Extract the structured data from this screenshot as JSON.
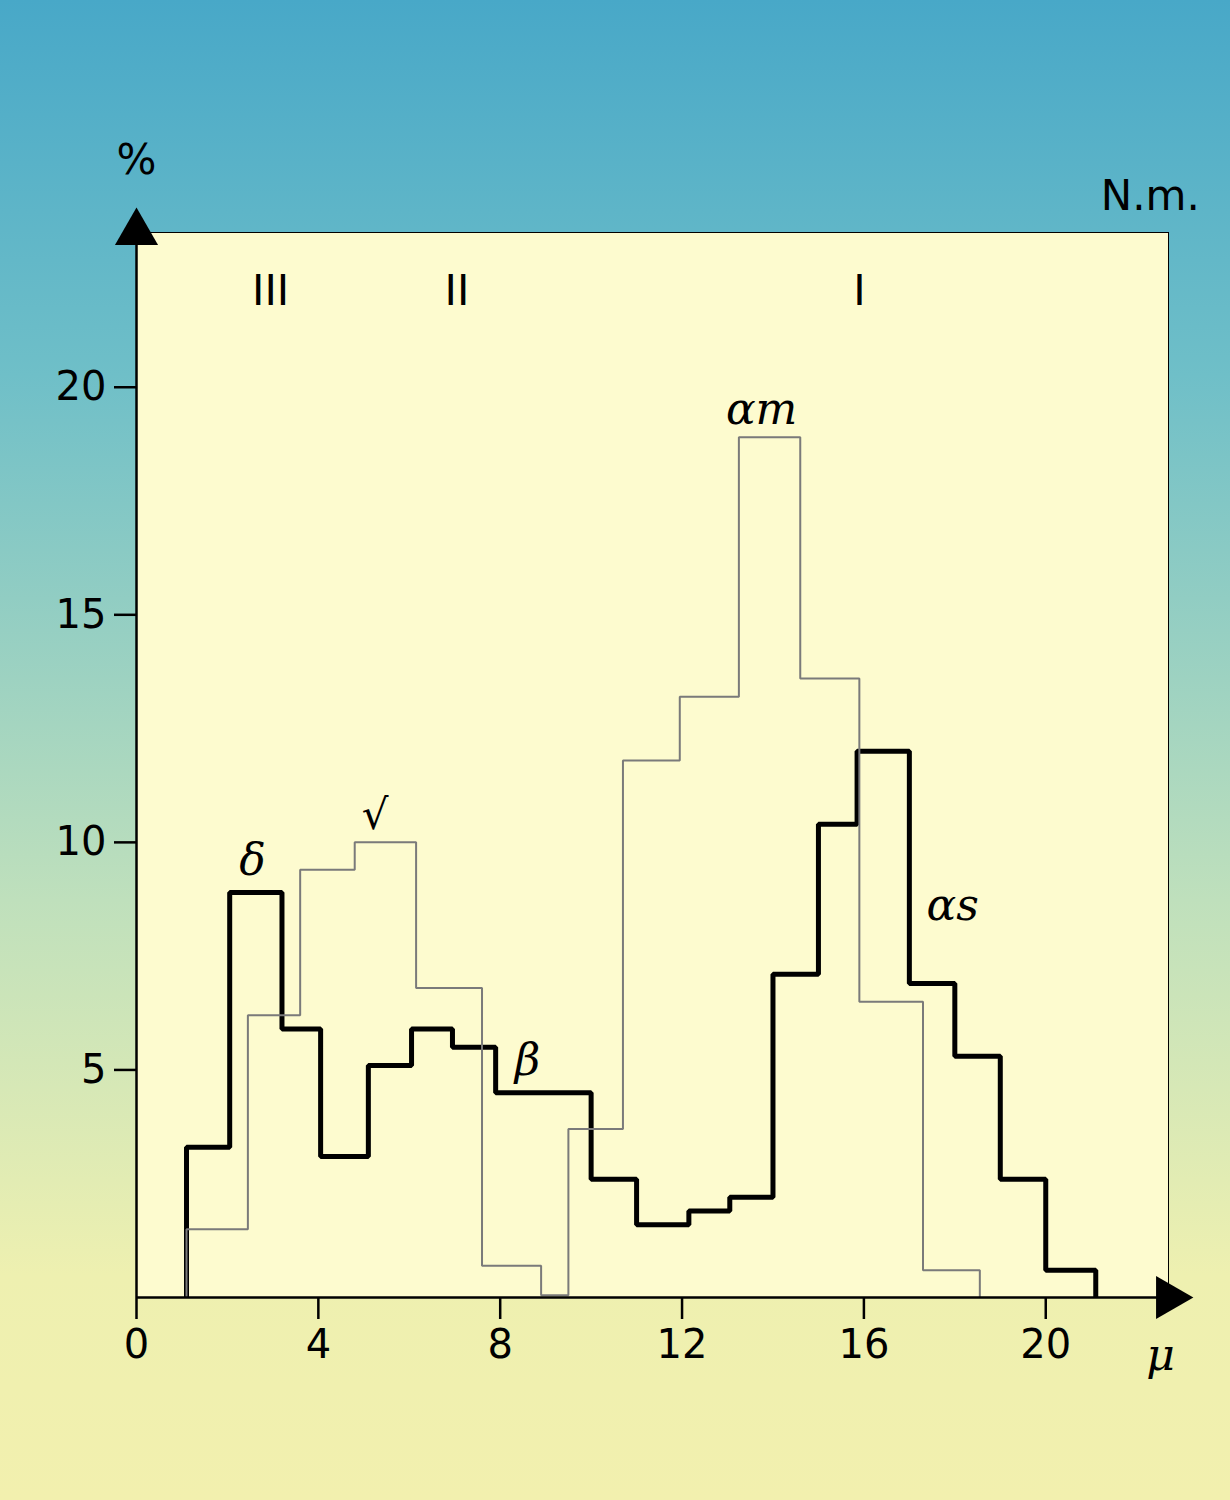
{
  "chart_data": {
    "type": "step_histogram",
    "x_label": "μ",
    "y_label": "%",
    "xlim": [
      0,
      22.7
    ],
    "ylim": [
      0,
      23.4
    ],
    "xticks": [
      0,
      4,
      8,
      12,
      16,
      20
    ],
    "yticks": [
      5,
      10,
      15,
      20
    ],
    "series": [
      {
        "color": "#000000",
        "line_style": "thick",
        "bins": [
          1.1,
          2.05,
          3.2,
          4.05,
          5.1,
          6.05,
          6.95,
          7.9,
          10.0,
          11.0,
          12.15,
          13.05,
          14.0,
          15.0,
          15.85,
          17.0,
          18.0,
          19.0,
          20.0,
          21.1
        ],
        "values": [
          3.3,
          8.9,
          5.9,
          3.1,
          5.1,
          5.9,
          5.5,
          4.5,
          2.6,
          1.6,
          1.9,
          2.2,
          7.1,
          10.4,
          12.0,
          6.9,
          5.3,
          2.6,
          0.6
        ]
      },
      {
        "color": "#7a7a7a",
        "line_style": "thin",
        "bins": [
          1.1,
          2.45,
          3.6,
          4.8,
          6.15,
          7.6,
          8.9,
          9.5,
          10.7,
          11.95,
          13.25,
          14.6,
          15.9,
          17.3,
          18.55
        ],
        "values": [
          1.5,
          6.2,
          9.4,
          10.0,
          6.8,
          0.7,
          0.05,
          3.7,
          11.8,
          13.2,
          18.9,
          13.6,
          6.5,
          0.6
        ]
      }
    ],
    "annotations": [
      {
        "text": "III",
        "x": 2.95,
        "y": 22.1
      },
      {
        "text": "II",
        "x": 7.05,
        "y": 22.1
      },
      {
        "text": "I",
        "x": 15.9,
        "y": 22.1
      },
      {
        "text": "δ",
        "x": 2.55,
        "y": 9.6
      },
      {
        "text": "√",
        "x": 5.25,
        "y": 10.6
      },
      {
        "text": "β",
        "x": 8.6,
        "y": 5.2
      },
      {
        "text": "αm",
        "x": 13.75,
        "y": 19.5
      },
      {
        "text": "αs",
        "x": 17.95,
        "y": 8.6
      },
      {
        "text": "N.m.",
        "x": 22.3,
        "y": 24.2
      }
    ]
  }
}
